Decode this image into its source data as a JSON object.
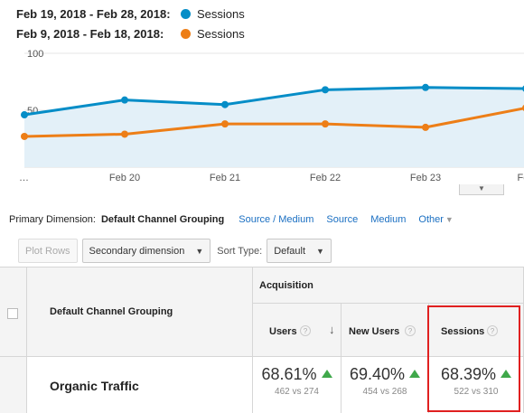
{
  "legend": [
    {
      "date_range": "Feb 19, 2018 - Feb 28, 2018:",
      "metric": "Sessions",
      "color": "#058dc7"
    },
    {
      "date_range": "Feb 9, 2018 - Feb 18, 2018:",
      "metric": "Sessions",
      "color": "#ed7e17"
    }
  ],
  "chart_data": {
    "type": "line",
    "x": [
      "…",
      "Feb 20",
      "Feb 21",
      "Feb 22",
      "Feb 23",
      "Feb"
    ],
    "y_ticks": [
      "100",
      "50"
    ],
    "ylim": [
      0,
      100
    ],
    "series": [
      {
        "name": "Feb 19, 2018 - Feb 28, 2018",
        "color": "#058dc7",
        "values": [
          46,
          59,
          55,
          68,
          70,
          69
        ]
      },
      {
        "name": "Feb 9, 2018 - Feb 18, 2018",
        "color": "#ed7e17",
        "values": [
          27,
          29,
          38,
          38,
          35,
          52
        ]
      }
    ],
    "area_under_primary": true,
    "grid": true
  },
  "primary_dimension": {
    "label": "Primary Dimension:",
    "current": "Default Channel Grouping",
    "options": [
      "Source / Medium",
      "Source",
      "Medium"
    ],
    "other": "Other"
  },
  "controls": {
    "plot_rows": "Plot Rows",
    "secondary_dimension": "Secondary dimension",
    "sort_type_label": "Sort Type:",
    "sort_type_value": "Default"
  },
  "table": {
    "dimension_header": "Default Channel Grouping",
    "group_header": "Acquisition",
    "columns": [
      "Users",
      "New Users",
      "Sessions"
    ],
    "qmark": "?",
    "rows": [
      {
        "label": "Organic Traffic",
        "values": [
          {
            "pct": "68.61%",
            "compare": "462 vs 274"
          },
          {
            "pct": "69.40%",
            "compare": "454 vs 268"
          },
          {
            "pct": "68.39%",
            "compare": "522 vs 310"
          }
        ]
      }
    ]
  }
}
